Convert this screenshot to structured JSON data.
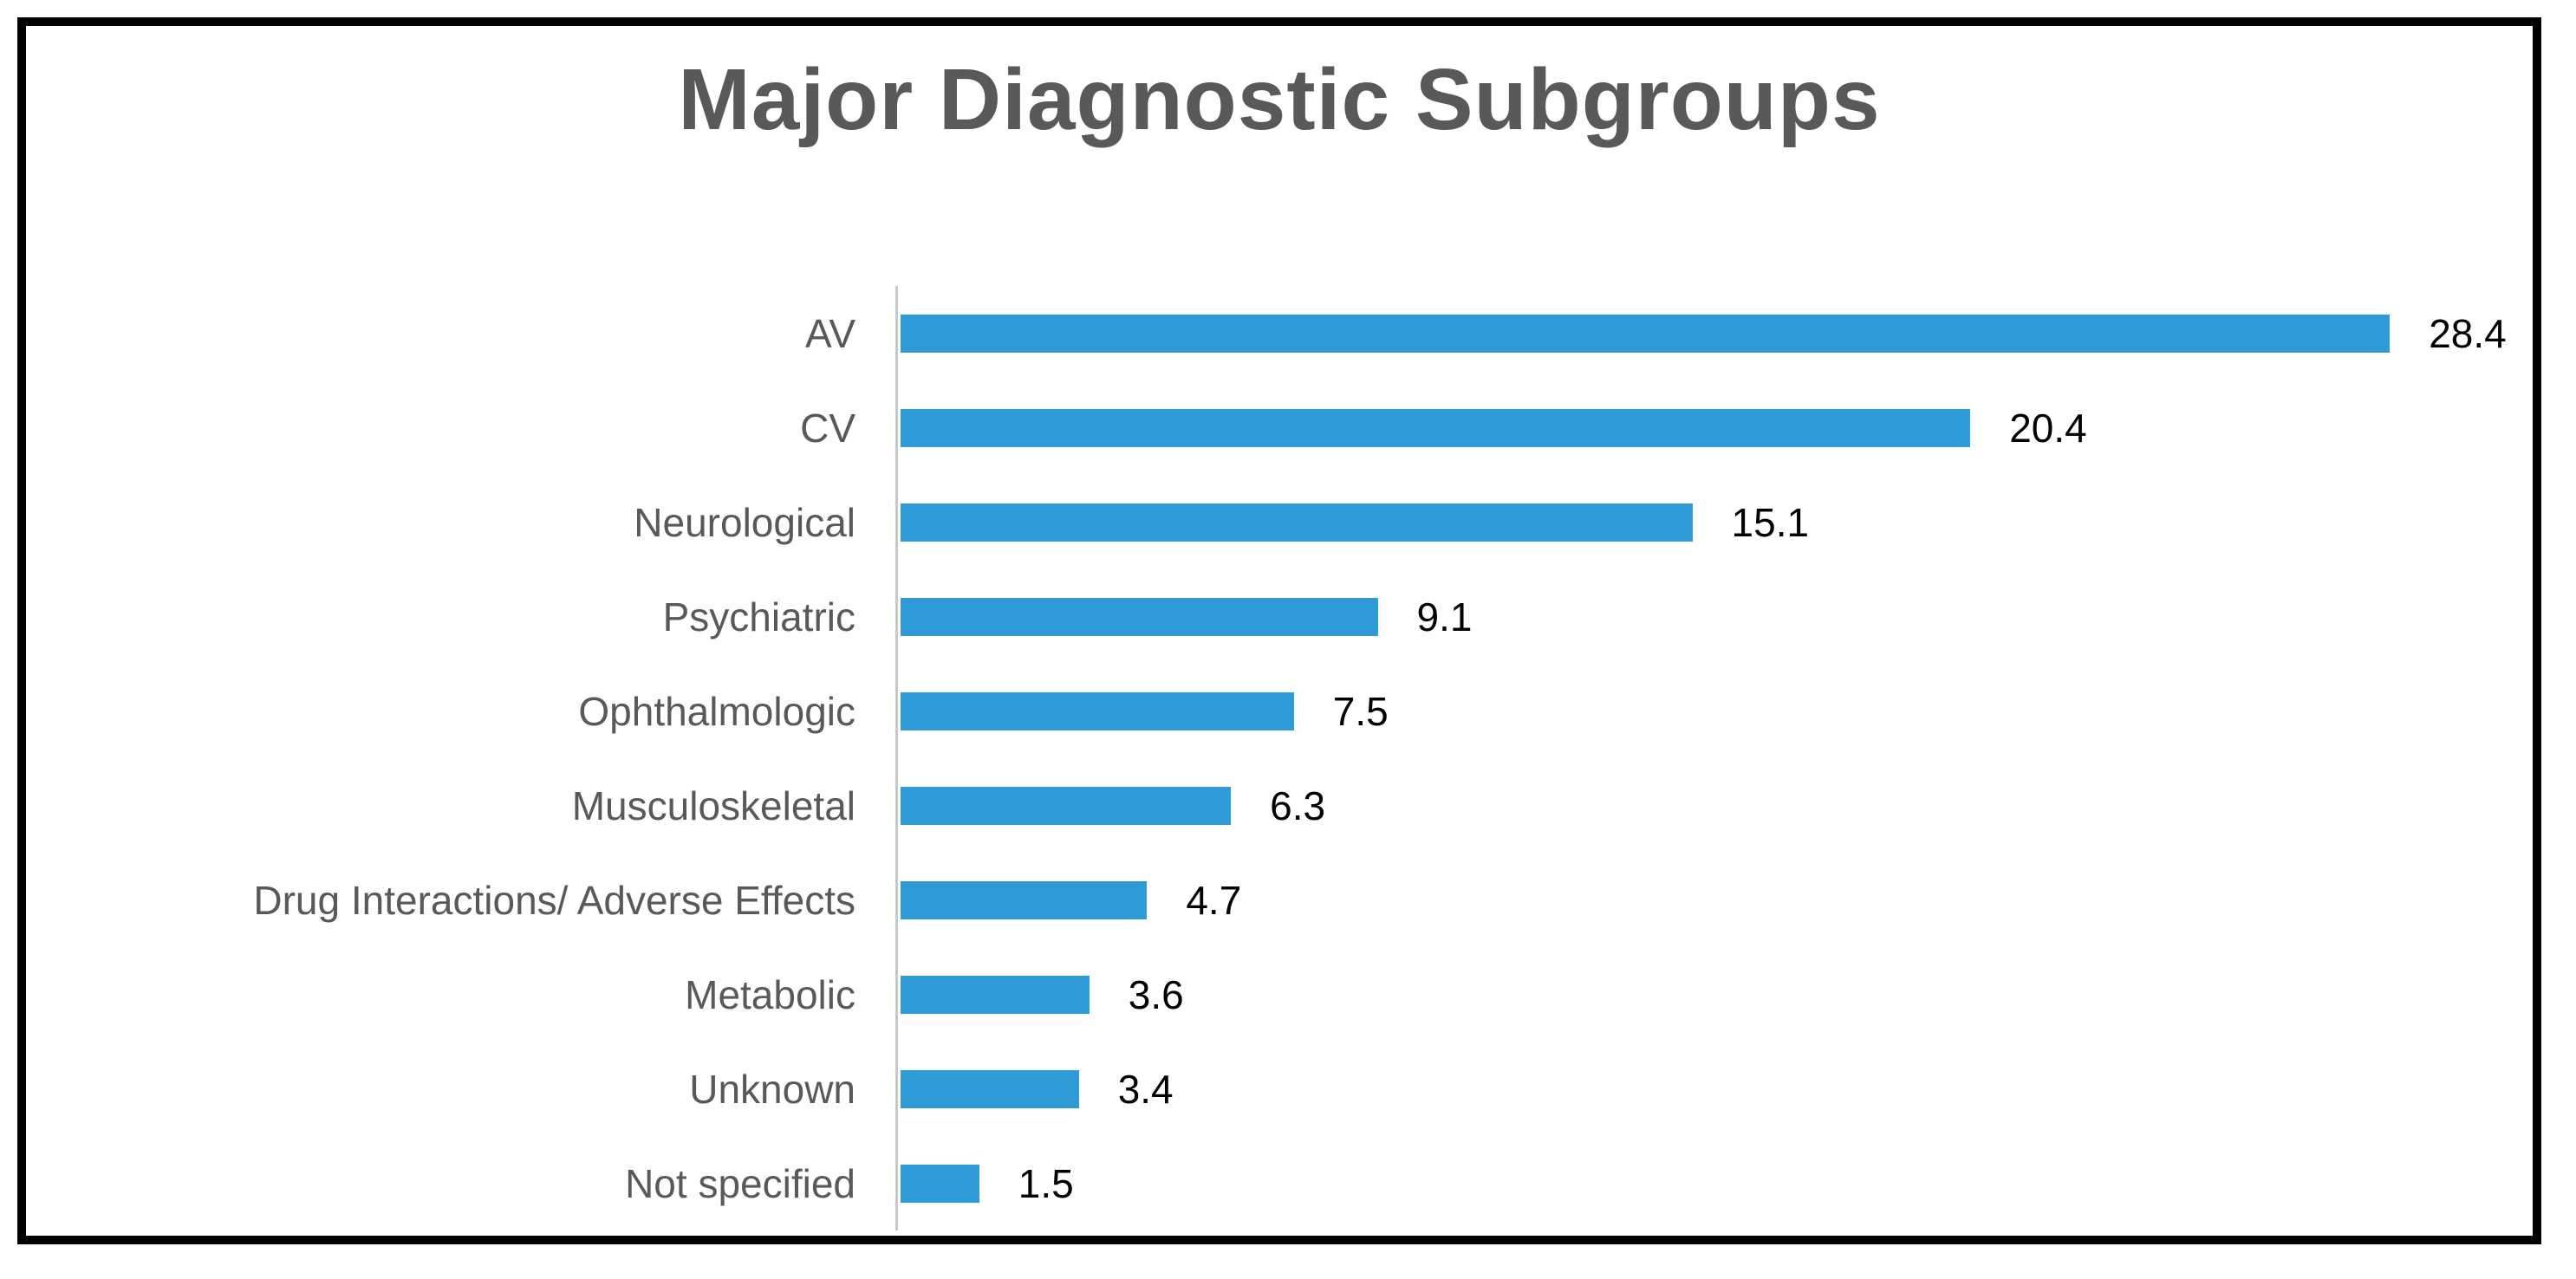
{
  "chart_data": {
    "type": "bar",
    "orientation": "horizontal",
    "title": "Major Diagnostic Subgroups",
    "categories": [
      "AV",
      "CV",
      "Neurological",
      "Psychiatric",
      "Ophthalmologic",
      "Musculoskeletal",
      "Drug Interactions/ Adverse Effects",
      "Metabolic",
      "Unknown",
      "Not specified"
    ],
    "values": [
      28.4,
      20.4,
      15.1,
      9.1,
      7.5,
      6.3,
      4.7,
      3.6,
      3.4,
      1.5
    ],
    "data_labels_shown": true,
    "xlabel": "",
    "ylabel": "",
    "xlim": [
      0,
      31.5
    ],
    "grid": false,
    "legend": "none",
    "axis_ticks_shown": false,
    "colors": {
      "bar": "#2E9BD6",
      "title": "#595959",
      "category_label": "#595959",
      "value_label": "#000000",
      "axis_line": "#c8c8c8",
      "border": "#000000"
    }
  }
}
